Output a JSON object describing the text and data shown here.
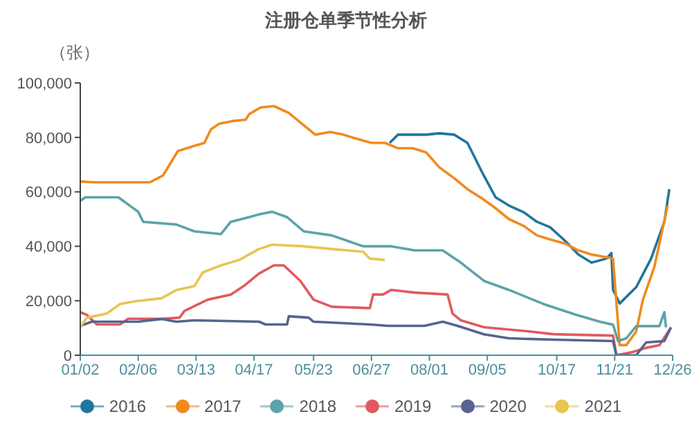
{
  "chart_data": {
    "type": "line",
    "title": "注册仓单季节性分析",
    "ylabel": "（张）",
    "xlim": [
      "--01-02",
      "--12-26"
    ],
    "xticks": [
      {
        "value": "--01-02",
        "label": "01/02"
      },
      {
        "value": "--02-06",
        "label": "02/06"
      },
      {
        "value": "--03-13",
        "label": "03/13"
      },
      {
        "value": "--04-17",
        "label": "04/17"
      },
      {
        "value": "--05-23",
        "label": "05/23"
      },
      {
        "value": "--06-27",
        "label": "06/27"
      },
      {
        "value": "--08-01",
        "label": "08/01"
      },
      {
        "value": "--09-05",
        "label": "09/05"
      },
      {
        "value": "--10-17",
        "label": "10/17"
      },
      {
        "value": "--11-21",
        "label": "11/21"
      },
      {
        "value": "--12-26",
        "label": "12/26"
      }
    ],
    "ylim": [
      0,
      100000
    ],
    "yticks": [
      0,
      {
        "value": 20000,
        "label": "20,000"
      },
      {
        "value": 40000,
        "label": "40,000"
      },
      {
        "value": 60000,
        "label": "60,000"
      },
      {
        "value": 80000,
        "label": "80,000"
      },
      {
        "value": 100000,
        "label": "100,000"
      }
    ],
    "grid": false,
    "legend": "bottom",
    "marker": "none",
    "line_style": "solid",
    "series": [
      {
        "name": "2016",
        "color": "#21759b",
        "x": [
          "--07-08",
          "--07-13",
          "--07-22",
          "--07-30",
          "--08-07",
          "--08-16",
          "--08-24",
          "--09-02",
          "--09-10",
          "--09-18",
          "--09-27",
          "--10-05",
          "--10-13",
          "--10-22",
          "--10-30",
          "--11-07",
          "--11-16",
          "--11-19",
          "--11-20",
          "--11-24",
          "--12-04",
          "--12-13",
          "--12-21",
          "--12-24"
        ],
        "values": [
          78000,
          81000,
          81000,
          81000,
          81500,
          81000,
          78000,
          67000,
          58000,
          55000,
          52500,
          49000,
          47000,
          42000,
          37000,
          34000,
          35500,
          37500,
          24000,
          19000,
          25000,
          35500,
          49000,
          61000
        ]
      },
      {
        "name": "2017",
        "color": "#f28a1c",
        "x": [
          "--01-02",
          "--01-10",
          "--01-19",
          "--01-27",
          "--02-04",
          "--02-13",
          "--02-21",
          "--03-02",
          "--03-10",
          "--03-18",
          "--03-22",
          "--03-27",
          "--04-04",
          "--04-12",
          "--04-14",
          "--04-21",
          "--04-29",
          "--05-08",
          "--05-16",
          "--05-24",
          "--06-02",
          "--06-10",
          "--06-18",
          "--06-27",
          "--07-05",
          "--07-13",
          "--07-22",
          "--07-30",
          "--08-07",
          "--08-16",
          "--08-24",
          "--09-02",
          "--09-10",
          "--09-18",
          "--09-27",
          "--10-05",
          "--10-13",
          "--10-22",
          "--10-30",
          "--11-07",
          "--11-16",
          "--11-20",
          "--11-24",
          "--11-28",
          "--12-04",
          "--12-08",
          "--12-15",
          "--12-23"
        ],
        "values": [
          63800,
          63500,
          63500,
          63500,
          63500,
          63500,
          66000,
          75000,
          76500,
          78000,
          83000,
          85000,
          86000,
          86500,
          88500,
          91000,
          91500,
          89000,
          85000,
          81000,
          82000,
          81000,
          79500,
          78000,
          78000,
          76000,
          76000,
          74500,
          69000,
          65000,
          61000,
          57500,
          54000,
          50000,
          47500,
          44000,
          42500,
          41000,
          38500,
          37000,
          36000,
          35400,
          3700,
          3700,
          8700,
          20300,
          32500,
          55000
        ]
      },
      {
        "name": "2018",
        "color": "#5ca3a8",
        "x": [
          "--01-02",
          "--01-05",
          "--01-25",
          "--02-06",
          "--02-09",
          "--03-01",
          "--03-12",
          "--03-28",
          "--04-03",
          "--04-14",
          "--04-20",
          "--04-28",
          "--05-07",
          "--05-17",
          "--06-03",
          "--06-22",
          "--07-09",
          "--07-23",
          "--08-09",
          "--08-20",
          "--09-03",
          "--09-18",
          "--10-09",
          "--10-29",
          "--11-12",
          "--11-20",
          "--11-23",
          "--11-28",
          "--12-04",
          "--12-18",
          "--12-21",
          "--12-22"
        ],
        "values": [
          56700,
          58000,
          58000,
          52700,
          49000,
          48000,
          45500,
          44500,
          49000,
          50700,
          51700,
          52700,
          50700,
          45500,
          44000,
          40000,
          40000,
          38500,
          38500,
          34000,
          27300,
          24000,
          18800,
          14800,
          12300,
          11200,
          5200,
          6200,
          10700,
          10700,
          15800,
          10200
        ]
      },
      {
        "name": "2019",
        "color": "#e05a5f",
        "x": [
          "--01-02",
          "--01-06",
          "--01-12",
          "--01-26",
          "--01-31",
          "--02-20",
          "--03-03",
          "--03-06",
          "--03-20",
          "--04-03",
          "--04-11",
          "--04-20",
          "--04-29",
          "--05-05",
          "--05-15",
          "--05-23",
          "--06-03",
          "--06-26",
          "--06-28",
          "--07-04",
          "--07-09",
          "--07-23",
          "--08-12",
          "--08-15",
          "--08-20",
          "--09-03",
          "--10-01",
          "--10-15",
          "--11-20",
          "--11-22",
          "--12-02",
          "--12-10",
          "--12-18",
          "--12-25"
        ],
        "values": [
          15800,
          14800,
          11300,
          11300,
          13400,
          13400,
          13800,
          16300,
          20400,
          22300,
          25500,
          30000,
          33000,
          33000,
          27300,
          20400,
          17800,
          17300,
          22300,
          22300,
          24000,
          23000,
          22300,
          15300,
          12800,
          10300,
          8700,
          7700,
          7200,
          0,
          1200,
          2700,
          3700,
          10200
        ]
      },
      {
        "name": "2020",
        "color": "#56648f",
        "x": [
          "--01-02",
          "--01-09",
          "--02-06",
          "--02-20",
          "--03-01",
          "--03-12",
          "--04-20",
          "--04-24",
          "--05-07",
          "--05-08",
          "--05-20",
          "--05-23",
          "--06-26",
          "--07-07",
          "--07-29",
          "--08-09",
          "--08-18",
          "--09-03",
          "--09-18",
          "--10-15",
          "--11-20",
          "--11-22",
          "--12-04",
          "--12-10",
          "--12-21",
          "--12-25"
        ],
        "values": [
          10800,
          12300,
          12300,
          13300,
          12300,
          12800,
          12300,
          11300,
          11300,
          14300,
          13800,
          12300,
          11300,
          10800,
          10800,
          12300,
          10800,
          7700,
          6200,
          5700,
          5200,
          0,
          0,
          4700,
          5200,
          10200
        ]
      },
      {
        "name": "2021",
        "color": "#e8c551",
        "x": [
          "--01-02",
          "--01-06",
          "--01-18",
          "--01-26",
          "--02-04",
          "--02-20",
          "--03-01",
          "--03-12",
          "--03-17",
          "--03-28",
          "--04-08",
          "--04-20",
          "--04-28",
          "--05-17",
          "--06-03",
          "--06-22",
          "--06-26",
          "--07-05"
        ],
        "values": [
          10300,
          13800,
          15300,
          18800,
          19800,
          20900,
          23900,
          25400,
          30400,
          33000,
          35000,
          39000,
          40600,
          40000,
          39000,
          38000,
          35500,
          35000
        ]
      }
    ]
  }
}
